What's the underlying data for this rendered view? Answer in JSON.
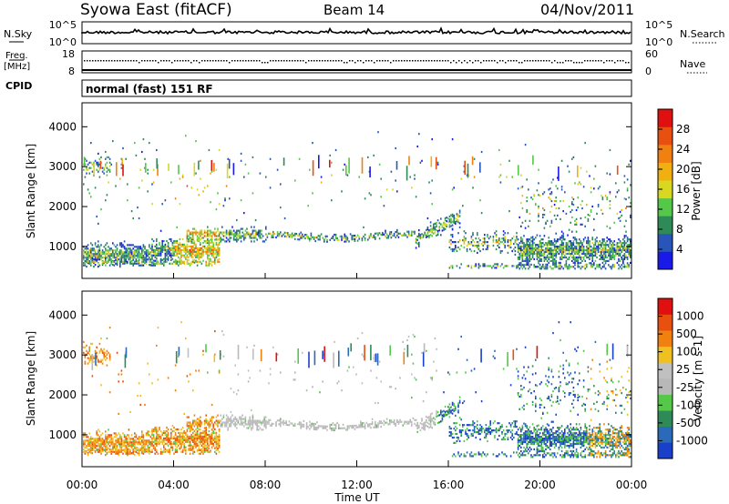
{
  "header": {
    "title": "Syowa East (fitACF)",
    "beam": "Beam 14",
    "date": "04/Nov/2011"
  },
  "noise_panel": {
    "left_label": "N.Sky",
    "right_label": "N.Search",
    "left_ticks": [
      "10^5",
      "10^0"
    ],
    "right_ticks": [
      "10^5",
      "10^0"
    ]
  },
  "freq_panel": {
    "left_label_1": "Freq.",
    "left_label_2": "[MHz]",
    "right_label": "Nave",
    "left_ticks": [
      "18",
      "8"
    ],
    "right_ticks": [
      "60",
      "0"
    ]
  },
  "cpid": {
    "label": "CPID",
    "value": "normal (fast) 151 RF"
  },
  "chart_data": [
    {
      "type": "heatmap",
      "quantity": "power",
      "ylabel": "Slant Range [km]",
      "yticks": [
        "1000",
        "2000",
        "3000",
        "4000"
      ],
      "ylim": [
        200,
        4600
      ],
      "colorbar_label": "Power [dB]",
      "colorbar_ticks": [
        "28",
        "24",
        "20",
        "16",
        "12",
        "8",
        "4"
      ],
      "colorscale": [
        "#1a1ae8",
        "#2a55b8",
        "#2e8b57",
        "#55c84a",
        "#d8d820",
        "#f0b010",
        "#f08010",
        "#e85010",
        "#e01010"
      ]
    },
    {
      "type": "heatmap",
      "quantity": "velocity",
      "ylabel": "Slant Range [km]",
      "yticks": [
        "1000",
        "2000",
        "3000",
        "4000"
      ],
      "ylim": [
        200,
        4600
      ],
      "colorbar_label": "Velocity [m s-1]",
      "colorbar_ticks": [
        "1000",
        "500",
        "100",
        "25",
        "-25",
        "-100",
        "-500",
        "-1000"
      ],
      "colorscale": [
        "#1a3fc8",
        "#2a6ab8",
        "#2e8b57",
        "#55c84a",
        "#b8b8b8",
        "#c0c0c0",
        "#f0c020",
        "#f08010",
        "#e85010",
        "#e01010"
      ],
      "xlabel": "Time UT",
      "xticks": [
        "00:00",
        "04:00",
        "08:00",
        "12:00",
        "16:00",
        "20:00",
        "00:00"
      ]
    }
  ]
}
